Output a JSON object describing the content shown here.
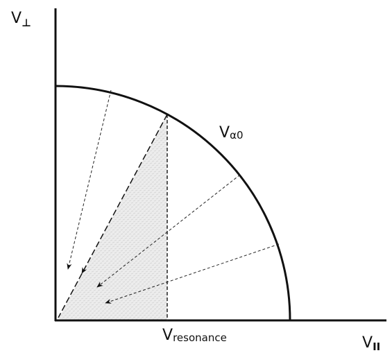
{
  "labels": {
    "v_perp": {
      "symbol": "V",
      "subscript": "⊥"
    },
    "v_alpha0": {
      "symbol": "V",
      "subscript": "α0"
    },
    "v_resonance": {
      "symbol": "V",
      "subscript": "resonance"
    },
    "v_parallel": {
      "symbol": "V",
      "subscript": "II"
    }
  }
}
